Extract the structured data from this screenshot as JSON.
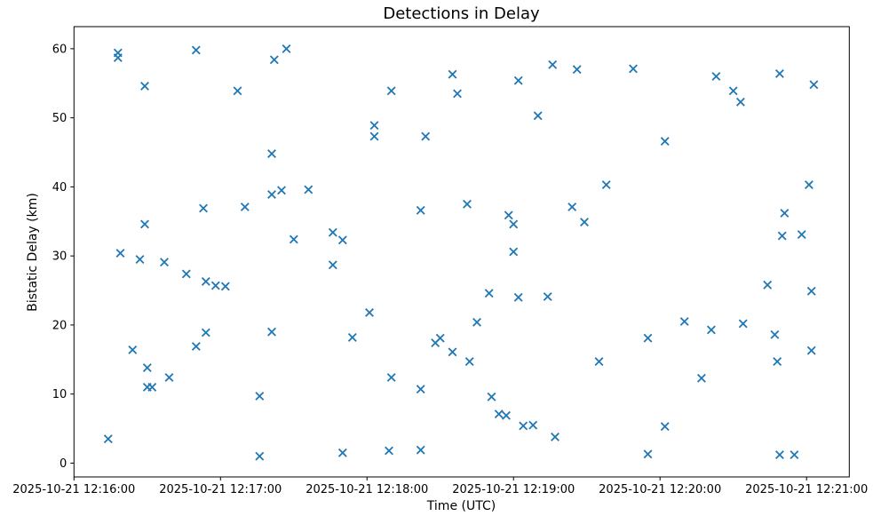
{
  "chart_data": {
    "type": "scatter",
    "title": "Detections in Delay",
    "xlabel": "Time (UTC)",
    "ylabel": "Bistatic Delay (km)",
    "legend": null,
    "grid": false,
    "marker": "x",
    "marker_color": "#1f77b4",
    "time_base": "2025-10-21 12:16:00",
    "x_unit": "seconds after time_base",
    "xlim_seconds": [
      0,
      317.5
    ],
    "ylim": [
      -2.0,
      63.2
    ],
    "x_ticks": {
      "positions_seconds": [
        0,
        60,
        120,
        180,
        240,
        300
      ],
      "labels": [
        "2025-10-21 12:16:00",
        "2025-10-21 12:17:00",
        "2025-10-21 12:18:00",
        "2025-10-21 12:19:00",
        "2025-10-21 12:20:00",
        "2025-10-21 12:21:00"
      ]
    },
    "y_ticks": {
      "positions": [
        0,
        10,
        20,
        30,
        40,
        50,
        60
      ],
      "labels": [
        "0",
        "10",
        "20",
        "30",
        "40",
        "50",
        "60"
      ]
    },
    "points": [
      [
        14,
        3.5
      ],
      [
        18,
        59.4
      ],
      [
        18,
        58.7
      ],
      [
        19,
        30.4
      ],
      [
        24,
        16.4
      ],
      [
        27,
        29.5
      ],
      [
        29,
        54.6
      ],
      [
        29,
        34.6
      ],
      [
        30,
        13.8
      ],
      [
        30,
        11.0
      ],
      [
        32,
        11.0
      ],
      [
        37,
        29.1
      ],
      [
        39,
        12.4
      ],
      [
        46,
        27.4
      ],
      [
        50,
        59.8
      ],
      [
        50,
        16.9
      ],
      [
        53,
        36.9
      ],
      [
        54,
        26.3
      ],
      [
        54,
        18.9
      ],
      [
        58,
        25.7
      ],
      [
        62,
        25.6
      ],
      [
        67,
        53.9
      ],
      [
        70,
        37.1
      ],
      [
        76,
        9.7
      ],
      [
        76,
        1.0
      ],
      [
        81,
        44.8
      ],
      [
        81,
        38.9
      ],
      [
        81,
        19.0
      ],
      [
        82,
        58.4
      ],
      [
        85,
        39.5
      ],
      [
        87,
        60.0
      ],
      [
        90,
        32.4
      ],
      [
        96,
        39.6
      ],
      [
        106,
        33.4
      ],
      [
        106,
        28.7
      ],
      [
        110,
        32.3
      ],
      [
        110,
        1.5
      ],
      [
        114,
        18.2
      ],
      [
        121,
        21.8
      ],
      [
        123,
        48.9
      ],
      [
        123,
        47.3
      ],
      [
        129,
        1.8
      ],
      [
        130,
        53.9
      ],
      [
        130,
        12.4
      ],
      [
        142,
        36.6
      ],
      [
        142,
        10.7
      ],
      [
        142,
        1.9
      ],
      [
        144,
        47.3
      ],
      [
        148,
        17.4
      ],
      [
        150,
        18.1
      ],
      [
        155,
        56.3
      ],
      [
        155,
        16.1
      ],
      [
        157,
        53.5
      ],
      [
        161,
        37.5
      ],
      [
        162,
        14.7
      ],
      [
        165,
        20.4
      ],
      [
        170,
        24.6
      ],
      [
        171,
        9.6
      ],
      [
        174,
        7.1
      ],
      [
        177,
        6.9
      ],
      [
        178,
        35.9
      ],
      [
        180,
        34.6
      ],
      [
        180,
        30.6
      ],
      [
        182,
        55.4
      ],
      [
        182,
        24.0
      ],
      [
        184,
        5.4
      ],
      [
        188,
        5.5
      ],
      [
        190,
        50.3
      ],
      [
        194,
        24.1
      ],
      [
        196,
        57.7
      ],
      [
        197,
        3.8
      ],
      [
        204,
        37.1
      ],
      [
        206,
        57.0
      ],
      [
        209,
        34.9
      ],
      [
        215,
        14.7
      ],
      [
        218,
        40.3
      ],
      [
        229,
        57.1
      ],
      [
        235,
        18.1
      ],
      [
        235,
        1.3
      ],
      [
        242,
        46.6
      ],
      [
        242,
        5.3
      ],
      [
        250,
        20.5
      ],
      [
        257,
        12.3
      ],
      [
        261,
        19.3
      ],
      [
        263,
        56.0
      ],
      [
        270,
        53.9
      ],
      [
        273,
        52.3
      ],
      [
        274,
        20.2
      ],
      [
        284,
        25.8
      ],
      [
        287,
        18.6
      ],
      [
        288,
        14.7
      ],
      [
        289,
        56.4
      ],
      [
        289,
        1.2
      ],
      [
        290,
        32.9
      ],
      [
        291,
        36.2
      ],
      [
        295,
        1.2
      ],
      [
        298,
        33.1
      ],
      [
        301,
        40.3
      ],
      [
        302,
        24.9
      ],
      [
        302,
        16.3
      ],
      [
        303,
        54.8
      ]
    ]
  }
}
